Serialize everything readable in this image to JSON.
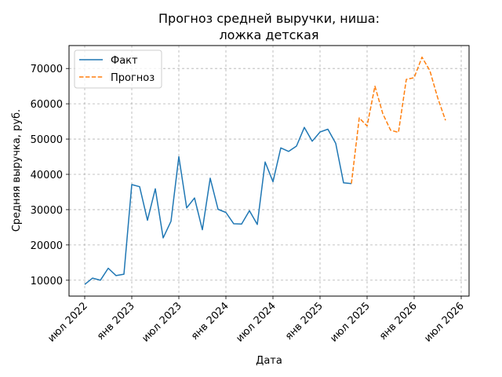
{
  "chart_data": {
    "type": "line",
    "title_line1": "Прогноз средней выручки, ниша:",
    "title_line2": "ложка детская",
    "xlabel": "Дата",
    "ylabel": "Средняя выручка, руб.",
    "grid": true,
    "legend_position": "top-left",
    "x_ticks": [
      "июл 2022",
      "янв 2023",
      "июл 2023",
      "янв 2024",
      "июл 2024",
      "янв 2025",
      "июл 2025",
      "янв 2026",
      "июл 2026"
    ],
    "y_ticks": [
      10000,
      20000,
      30000,
      40000,
      50000,
      60000,
      70000
    ],
    "xlim": [
      "2022-05-01",
      "2026-08-01"
    ],
    "ylim": [
      5500,
      76500
    ],
    "series": [
      {
        "name": "Факт",
        "color": "#1f77b4",
        "style": "solid",
        "points": [
          [
            "2022-07-01",
            8800
          ],
          [
            "2022-08-01",
            10600
          ],
          [
            "2022-09-01",
            10000
          ],
          [
            "2022-10-01",
            13400
          ],
          [
            "2022-11-01",
            11300
          ],
          [
            "2022-12-01",
            11700
          ],
          [
            "2023-01-01",
            37100
          ],
          [
            "2023-02-01",
            36500
          ],
          [
            "2023-03-01",
            27000
          ],
          [
            "2023-04-01",
            35900
          ],
          [
            "2023-05-01",
            22000
          ],
          [
            "2023-06-01",
            26700
          ],
          [
            "2023-07-01",
            45000
          ],
          [
            "2023-08-01",
            30500
          ],
          [
            "2023-09-01",
            33300
          ],
          [
            "2023-10-01",
            24300
          ],
          [
            "2023-11-01",
            38900
          ],
          [
            "2023-12-01",
            30100
          ],
          [
            "2024-01-01",
            29200
          ],
          [
            "2024-02-01",
            26000
          ],
          [
            "2024-03-01",
            25900
          ],
          [
            "2024-04-01",
            29700
          ],
          [
            "2024-05-01",
            25800
          ],
          [
            "2024-06-01",
            43500
          ],
          [
            "2024-07-01",
            37900
          ],
          [
            "2024-08-01",
            47500
          ],
          [
            "2024-09-01",
            46500
          ],
          [
            "2024-10-01",
            48000
          ],
          [
            "2024-11-01",
            53300
          ],
          [
            "2024-12-01",
            49400
          ],
          [
            "2025-01-01",
            52000
          ],
          [
            "2025-02-01",
            52800
          ],
          [
            "2025-03-01",
            48800
          ],
          [
            "2025-04-01",
            37600
          ],
          [
            "2025-05-01",
            37400
          ]
        ]
      },
      {
        "name": "Прогноз",
        "color": "#ff7f0e",
        "style": "dashed",
        "points": [
          [
            "2025-05-01",
            37400
          ],
          [
            "2025-06-01",
            56000
          ],
          [
            "2025-07-01",
            53700
          ],
          [
            "2025-08-01",
            65000
          ],
          [
            "2025-09-01",
            57200
          ],
          [
            "2025-10-01",
            52500
          ],
          [
            "2025-11-01",
            51900
          ],
          [
            "2025-12-01",
            66900
          ],
          [
            "2026-01-01",
            67400
          ],
          [
            "2026-02-01",
            73200
          ],
          [
            "2026-03-01",
            69400
          ],
          [
            "2026-04-01",
            61700
          ],
          [
            "2026-05-01",
            55300
          ]
        ]
      }
    ]
  }
}
